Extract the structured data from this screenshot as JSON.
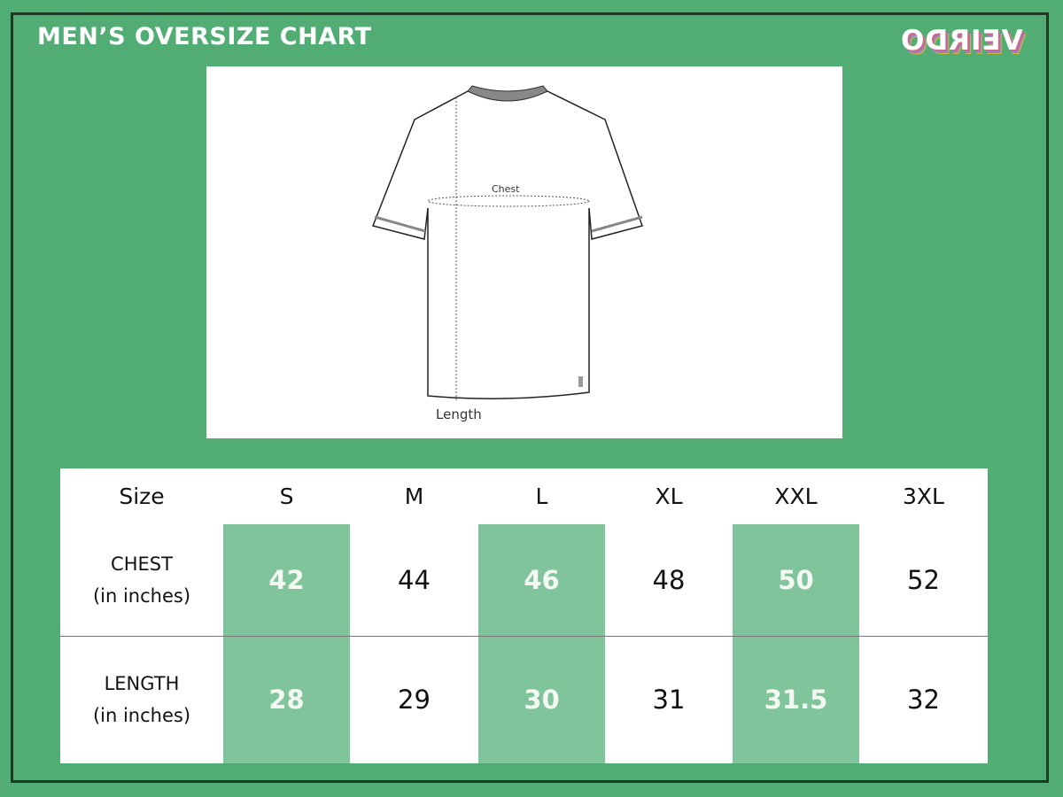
{
  "title": "MEN’S OVERSIZE CHART",
  "logo": {
    "text": "VEIRDO",
    "mirrored": true
  },
  "illustration": {
    "chest_label": "Chest",
    "length_label": "Length"
  },
  "colors": {
    "background": "#52ad74",
    "highlight": "#80c49c",
    "border": "#1c3a26"
  },
  "table": {
    "header_label": "Size",
    "sizes": [
      "S",
      "M",
      "L",
      "XL",
      "XXL",
      "3XL"
    ],
    "highlighted_columns": [
      0,
      2,
      4
    ],
    "rows": [
      {
        "label": "CHEST",
        "unit": "(in inches)",
        "values": [
          "42",
          "44",
          "46",
          "48",
          "50",
          "52"
        ]
      },
      {
        "label": "LENGTH",
        "unit": "(in inches)",
        "values": [
          "28",
          "29",
          "30",
          "31",
          "31.5",
          "32"
        ]
      }
    ]
  }
}
